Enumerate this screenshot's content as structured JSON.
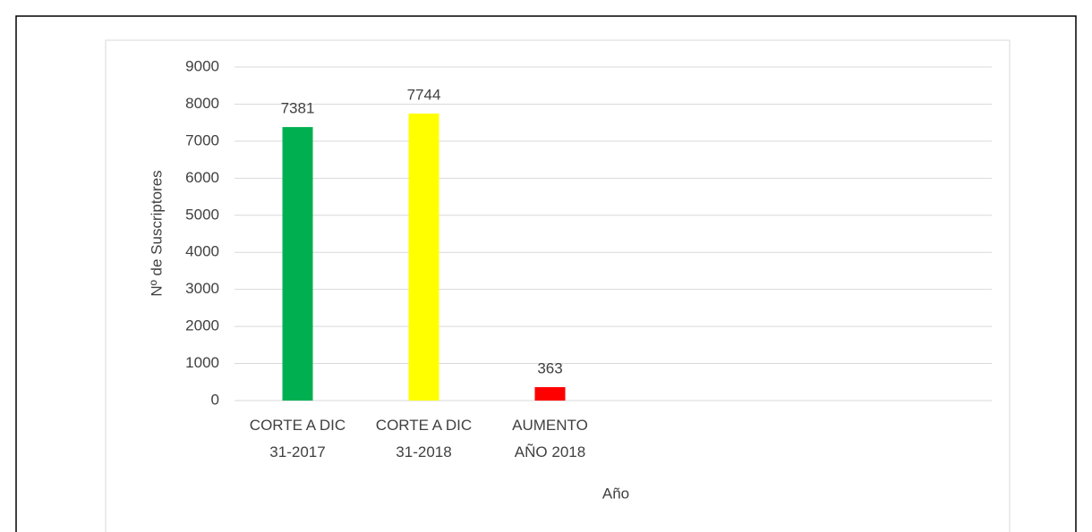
{
  "chart_data": {
    "type": "bar",
    "y_label": "Nº de Suscriptores",
    "x_label": "Año",
    "categories": [
      "CORTE A DIC\n31-2017",
      "CORTE A DIC\n31-2018",
      "AUMENTO\nAÑO 2018",
      null,
      null,
      null
    ],
    "values": [
      7381,
      7744,
      363,
      null,
      null,
      null
    ],
    "colors": [
      "#00b050",
      "#ffff00",
      "#ff0000",
      null,
      null,
      null
    ],
    "ylim": [
      0,
      9000
    ],
    "yticks": [
      0,
      1000,
      2000,
      3000,
      4000,
      5000,
      6000,
      7000,
      8000,
      9000
    ],
    "grid": true
  }
}
